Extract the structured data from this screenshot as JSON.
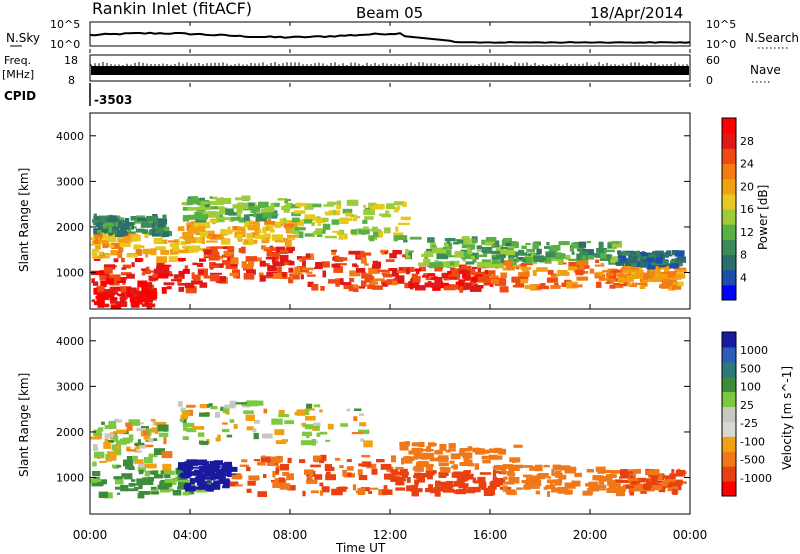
{
  "header": {
    "station": "Rankin Inlet (fitACF)",
    "beam": "Beam 05",
    "date": "18/Apr/2014"
  },
  "top_panels": {
    "nsky_label": "N.Sky",
    "nsky_ticks": [
      "10^5",
      "10^0"
    ],
    "nsearch_label": "N.Search",
    "nsearch_ticks": [
      "10^5",
      "10^0"
    ],
    "freq_label": "Freq.",
    "freq_unit": "[MHz]",
    "freq_ticks": [
      "18",
      "8"
    ],
    "nave_label": "Nave",
    "nave_ticks": [
      "60",
      "0"
    ],
    "cpid_label": "CPID",
    "cpid_value": "-3503"
  },
  "colors": {
    "power_scale": [
      "#0000ff",
      "#1c4fa8",
      "#2e6e6a",
      "#3b8a5a",
      "#58b044",
      "#9ccc3a",
      "#e8c820",
      "#f0a010",
      "#f47a14",
      "#f04a14",
      "#e01818",
      "#ff0000"
    ],
    "velocity_scale": [
      "#1a1aa0",
      "#2a5cb8",
      "#2e7a7a",
      "#3c8c3c",
      "#7cc840",
      "#c8c8c0",
      "#d8d8d0",
      "#f0a010",
      "#f07818",
      "#e84010",
      "#ff0000"
    ]
  },
  "chart_data": [
    {
      "type": "heatmap",
      "name": "power",
      "ylabel": "Slant Range [km]",
      "yticks": [
        "1000",
        "2000",
        "3000",
        "4000"
      ],
      "ylim": [
        200,
        4500
      ],
      "xticks": [
        "00:00",
        "04:00",
        "08:00",
        "12:00",
        "16:00",
        "20:00",
        "00:00"
      ],
      "xlim_hours": [
        0,
        24
      ],
      "colorbar": {
        "label": "Power [dB]",
        "ticks": [
          "4",
          "8",
          "12",
          "16",
          "20",
          "24",
          "28"
        ],
        "range": [
          0,
          30
        ]
      },
      "bands": [
        {
          "t": [
            0.0,
            2.5
          ],
          "r": [
            250,
            700
          ],
          "value": 28
        },
        {
          "t": [
            0.0,
            4.5
          ],
          "r": [
            650,
            1350
          ],
          "value": 26
        },
        {
          "t": [
            0.0,
            4.5
          ],
          "r": [
            1350,
            1900
          ],
          "value": 18
        },
        {
          "t": [
            0.0,
            3.0
          ],
          "r": [
            1900,
            2300
          ],
          "value": 8
        },
        {
          "t": [
            4.5,
            8.0
          ],
          "r": [
            900,
            1600
          ],
          "value": 24
        },
        {
          "t": [
            3.5,
            8.0
          ],
          "r": [
            1700,
            2200
          ],
          "value": 18
        },
        {
          "t": [
            3.5,
            8.0
          ],
          "r": [
            2200,
            2700
          ],
          "value": 12
        },
        {
          "t": [
            8.0,
            12.5
          ],
          "r": [
            700,
            1500
          ],
          "value": 24
        },
        {
          "t": [
            8.0,
            12.5
          ],
          "r": [
            1800,
            2600
          ],
          "value": 14
        },
        {
          "t": [
            12.5,
            16.0
          ],
          "r": [
            700,
            1200
          ],
          "value": 26
        },
        {
          "t": [
            12.5,
            17.0
          ],
          "r": [
            1200,
            1800
          ],
          "value": 12
        },
        {
          "t": [
            16.0,
            21.0
          ],
          "r": [
            700,
            1300
          ],
          "value": 22
        },
        {
          "t": [
            16.0,
            21.0
          ],
          "r": [
            1300,
            1700
          ],
          "value": 10
        },
        {
          "t": [
            21.0,
            23.5
          ],
          "r": [
            700,
            1200
          ],
          "value": 20
        },
        {
          "t": [
            21.0,
            23.5
          ],
          "r": [
            1200,
            1500
          ],
          "value": 6
        }
      ]
    },
    {
      "type": "heatmap",
      "name": "velocity",
      "ylabel": "Slant Range [km]",
      "yticks": [
        "1000",
        "2000",
        "3000",
        "4000"
      ],
      "ylim": [
        200,
        4500
      ],
      "xticks": [
        "00:00",
        "04:00",
        "08:00",
        "12:00",
        "16:00",
        "20:00",
        "00:00"
      ],
      "xlabel": "Time UT",
      "colorbar": {
        "label": "Velocity [m s^-1]",
        "ticks": [
          "1000",
          "500",
          "100",
          "25",
          "-25",
          "-100",
          "-500",
          "-1000"
        ]
      },
      "bands": [
        {
          "t": [
            0.0,
            4.5
          ],
          "r": [
            650,
            1300
          ],
          "value": 100
        },
        {
          "t": [
            0.0,
            3.0
          ],
          "r": [
            1300,
            2300
          ],
          "value": 0
        },
        {
          "t": [
            3.5,
            5.5
          ],
          "r": [
            800,
            1400
          ],
          "value": 800
        },
        {
          "t": [
            3.5,
            11.0
          ],
          "r": [
            1800,
            2700
          ],
          "value": 0
        },
        {
          "t": [
            5.5,
            12.0
          ],
          "r": [
            700,
            1500
          ],
          "value": -300
        },
        {
          "t": [
            12.0,
            16.5
          ],
          "r": [
            700,
            1200
          ],
          "value": -400
        },
        {
          "t": [
            12.0,
            17.0
          ],
          "r": [
            1200,
            1800
          ],
          "value": -150
        },
        {
          "t": [
            16.5,
            21.0
          ],
          "r": [
            700,
            1300
          ],
          "value": -200
        },
        {
          "t": [
            21.0,
            23.5
          ],
          "r": [
            700,
            1200
          ],
          "value": -300
        }
      ]
    }
  ]
}
